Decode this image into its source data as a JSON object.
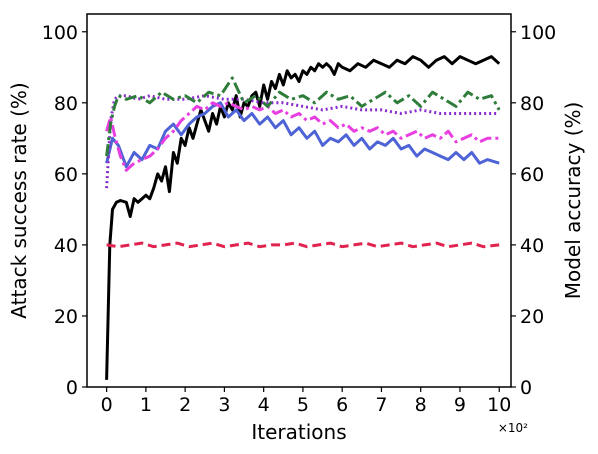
{
  "chart_data": {
    "type": "line",
    "xlabel": "Iterations",
    "ylabel_left": "Attack success rate (%)",
    "ylabel_right": "Model accuracy (%)",
    "x_multiplier_label": "×10²",
    "xlim": [
      -0.5,
      10.3
    ],
    "ylim_left": [
      0,
      105
    ],
    "ylim_right": [
      0,
      105
    ],
    "x_ticks": [
      "0",
      "1",
      "2",
      "3",
      "4",
      "5",
      "6",
      "7",
      "8",
      "9",
      "10"
    ],
    "y_ticks_left": [
      "0",
      "20",
      "40",
      "60",
      "80",
      "100"
    ],
    "y_ticks_right": [
      "0",
      "20",
      "40",
      "60",
      "80",
      "100"
    ],
    "grid": false,
    "legend": "none",
    "series": [
      {
        "axis": "left",
        "color": "#000000",
        "style": "solid",
        "x": [
          0.0,
          0.08,
          0.15,
          0.25,
          0.35,
          0.5,
          0.6,
          0.7,
          0.8,
          0.9,
          1.0,
          1.1,
          1.2,
          1.3,
          1.4,
          1.5,
          1.6,
          1.7,
          1.8,
          1.9,
          2.0,
          2.1,
          2.2,
          2.3,
          2.4,
          2.5,
          2.6,
          2.7,
          2.8,
          2.9,
          3.0,
          3.1,
          3.2,
          3.3,
          3.4,
          3.5,
          3.6,
          3.7,
          3.8,
          3.9,
          4.0,
          4.1,
          4.2,
          4.3,
          4.4,
          4.5,
          4.6,
          4.7,
          4.8,
          4.9,
          5.0,
          5.1,
          5.2,
          5.3,
          5.4,
          5.5,
          5.6,
          5.7,
          5.8,
          5.9,
          6.0,
          6.2,
          6.4,
          6.6,
          6.8,
          7.0,
          7.2,
          7.4,
          7.6,
          7.8,
          8.0,
          8.2,
          8.4,
          8.6,
          8.8,
          9.0,
          9.2,
          9.4,
          9.6,
          9.8,
          10.0
        ],
        "y": [
          2,
          40,
          50,
          52,
          52.5,
          52,
          48,
          53,
          52,
          53,
          54,
          53,
          56,
          60,
          58,
          62,
          55,
          66,
          63,
          70,
          68,
          73,
          70,
          74,
          78,
          75,
          72,
          77,
          74,
          79,
          76,
          80,
          78,
          82,
          76,
          80,
          79,
          82,
          83,
          79,
          85,
          81,
          86,
          84,
          88,
          85,
          89,
          87,
          88,
          86,
          89,
          88,
          90,
          89,
          91,
          90,
          91,
          90,
          88,
          91,
          90,
          89,
          91,
          90,
          92,
          91,
          90,
          92,
          91,
          93,
          92,
          90,
          92,
          93,
          91,
          93,
          92,
          91,
          92,
          93,
          91
        ]
      },
      {
        "axis": "right",
        "color": "#4e64d6",
        "style": "solid",
        "x": [
          0.0,
          0.15,
          0.3,
          0.5,
          0.7,
          0.9,
          1.1,
          1.3,
          1.5,
          1.7,
          1.9,
          2.1,
          2.3,
          2.5,
          2.7,
          2.9,
          3.1,
          3.3,
          3.5,
          3.7,
          3.9,
          4.1,
          4.3,
          4.5,
          4.7,
          4.9,
          5.1,
          5.3,
          5.5,
          5.7,
          5.9,
          6.1,
          6.3,
          6.5,
          6.7,
          6.9,
          7.1,
          7.3,
          7.5,
          7.7,
          7.9,
          8.1,
          8.3,
          8.5,
          8.7,
          8.9,
          9.1,
          9.3,
          9.5,
          9.7,
          10.0
        ],
        "y": [
          63,
          70,
          68,
          62,
          66,
          64,
          68,
          67,
          72,
          74,
          71,
          74,
          76,
          77,
          79,
          80,
          76,
          78,
          75,
          77,
          74,
          76,
          73,
          75,
          71,
          73,
          70,
          72,
          68,
          70,
          69,
          71,
          68,
          70,
          67,
          69,
          68,
          70,
          67,
          68,
          65,
          67,
          66,
          65,
          64,
          66,
          64,
          66,
          63,
          64,
          63
        ]
      },
      {
        "axis": "right",
        "color": "#e83ee0",
        "style": "dashdot",
        "x": [
          0.0,
          0.1,
          0.2,
          0.35,
          0.5,
          0.7,
          0.9,
          1.1,
          1.3,
          1.5,
          1.7,
          1.9,
          2.1,
          2.3,
          2.5,
          2.7,
          2.9,
          3.1,
          3.3,
          3.5,
          3.7,
          3.9,
          4.1,
          4.3,
          4.5,
          4.7,
          4.9,
          5.1,
          5.3,
          5.5,
          5.7,
          5.9,
          6.1,
          6.3,
          6.5,
          6.7,
          6.9,
          7.1,
          7.3,
          7.5,
          7.7,
          7.9,
          8.1,
          8.3,
          8.5,
          8.7,
          8.9,
          9.1,
          9.3,
          9.5,
          9.7,
          10.0
        ],
        "y": [
          72,
          76,
          71,
          65,
          61,
          63,
          64,
          65,
          67,
          70,
          72,
          75,
          77,
          79,
          78,
          80,
          79,
          80,
          79,
          78,
          79,
          78,
          79,
          77,
          78,
          76,
          77,
          75,
          76,
          74,
          75,
          73,
          74,
          72,
          73,
          72,
          73,
          71,
          72,
          70,
          71,
          72,
          70,
          71,
          70,
          72,
          69,
          70,
          71,
          69,
          70,
          70
        ]
      },
      {
        "axis": "right",
        "color": "#8a2bcf",
        "style": "dotted",
        "x": [
          0.0,
          0.1,
          0.2,
          0.3,
          0.5,
          0.8,
          1.1,
          1.5,
          2.0,
          2.5,
          3.0,
          3.5,
          4.0,
          4.5,
          5.0,
          5.5,
          6.0,
          6.5,
          7.0,
          7.5,
          8.0,
          8.5,
          9.0,
          9.5,
          10.0
        ],
        "y": [
          56,
          75,
          81,
          82,
          82,
          81,
          82,
          81,
          81,
          82,
          81,
          81,
          80,
          80,
          79,
          78,
          79,
          78,
          78,
          77,
          78,
          77,
          77,
          77,
          77
        ]
      },
      {
        "axis": "right",
        "color": "#2f7d3a",
        "style": "dashdot",
        "x": [
          0.0,
          0.1,
          0.2,
          0.3,
          0.5,
          0.8,
          1.1,
          1.4,
          1.7,
          2.0,
          2.3,
          2.6,
          2.9,
          3.2,
          3.5,
          3.8,
          4.1,
          4.4,
          4.7,
          5.0,
          5.3,
          5.6,
          5.9,
          6.2,
          6.5,
          6.8,
          7.1,
          7.4,
          7.7,
          8.0,
          8.3,
          8.6,
          8.9,
          9.2,
          9.5,
          9.8,
          10.0
        ],
        "y": [
          65,
          74,
          79,
          82,
          81,
          82,
          80,
          83,
          81,
          82,
          80,
          83,
          82,
          87,
          80,
          82,
          79,
          83,
          81,
          82,
          80,
          83,
          81,
          82,
          79,
          81,
          83,
          80,
          82,
          79,
          83,
          81,
          79,
          83,
          81,
          82,
          78
        ]
      },
      {
        "axis": "left",
        "color": "#e0234f",
        "style": "dashed",
        "x": [
          0.0,
          0.3,
          0.6,
          0.9,
          1.2,
          1.5,
          1.8,
          2.1,
          2.4,
          2.7,
          3.0,
          3.3,
          3.6,
          3.9,
          4.2,
          4.5,
          4.8,
          5.1,
          5.4,
          5.7,
          6.0,
          6.3,
          6.6,
          6.9,
          7.2,
          7.5,
          7.8,
          8.1,
          8.4,
          8.7,
          9.0,
          9.3,
          9.6,
          10.0
        ],
        "y": [
          40,
          39.5,
          40,
          40.5,
          39.5,
          40,
          40.5,
          39.5,
          40,
          40.5,
          39.5,
          40,
          40.5,
          39.5,
          40,
          40,
          40.5,
          39.5,
          40,
          40.5,
          39.5,
          40,
          40.5,
          39.5,
          40,
          40.5,
          39.5,
          40,
          40.5,
          39.5,
          40,
          40.5,
          39.5,
          40
        ]
      }
    ]
  }
}
